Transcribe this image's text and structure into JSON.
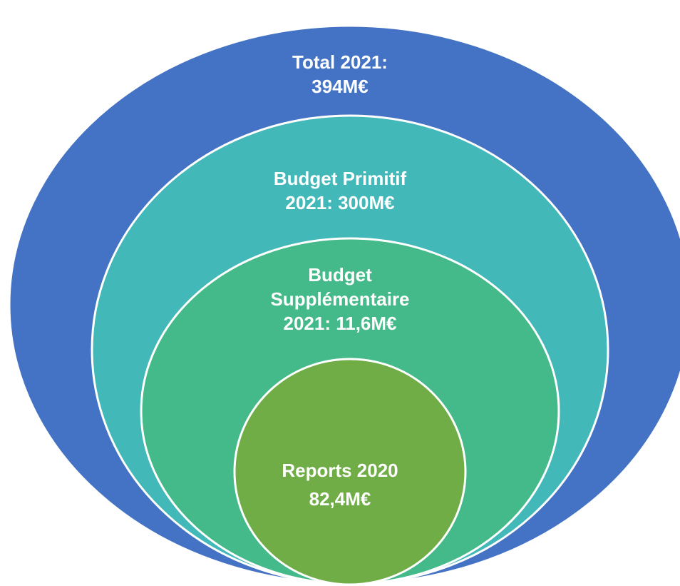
{
  "diagram": {
    "type": "nested-ellipses",
    "rings": [
      {
        "id": "total",
        "lines": [
          "Total 2021:",
          "394M€"
        ],
        "color": "#4472C4"
      },
      {
        "id": "budget-primitif",
        "lines": [
          "Budget Primitif",
          "2021: 300M€"
        ],
        "color": "#42B8B8"
      },
      {
        "id": "budget-supplementaire",
        "lines": [
          "Budget",
          "Supplémentaire",
          "2021: 11,6M€"
        ],
        "color": "#44B98A"
      },
      {
        "id": "reports",
        "lines": [
          "Reports 2020",
          "82,4M€"
        ],
        "color": "#70AD47"
      }
    ],
    "outline_color": "#ffffff"
  }
}
